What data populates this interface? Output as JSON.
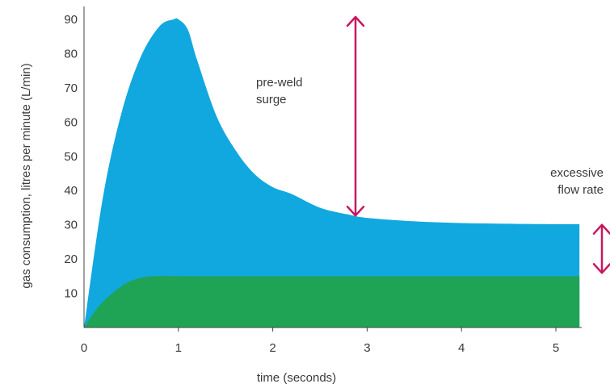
{
  "chart_data": {
    "type": "area",
    "xlabel": "time (seconds)",
    "ylabel": "gas consumption, litres per minute (L/min)",
    "xlim": [
      0,
      5.25
    ],
    "ylim": [
      0,
      92
    ],
    "x_ticks": [
      "0",
      "1",
      "2",
      "3",
      "4",
      "5"
    ],
    "y_ticks": [
      "10",
      "20",
      "30",
      "40",
      "50",
      "60",
      "70",
      "80",
      "90"
    ],
    "grid": false,
    "series": [
      {
        "color": "#11a8df",
        "x": [
          0,
          0.2,
          0.4,
          0.6,
          0.8,
          0.95,
          1.0,
          1.1,
          1.2,
          1.4,
          1.6,
          1.8,
          2.0,
          2.2,
          2.5,
          2.8,
          3.0,
          3.5,
          4.0,
          4.5,
          5.0,
          5.25
        ],
        "y": [
          0,
          38,
          63,
          79,
          88,
          90,
          90,
          87,
          78,
          62,
          52,
          45,
          41,
          39,
          35,
          33,
          32,
          31,
          30.5,
          30.3,
          30.2,
          30.2
        ]
      },
      {
        "color": "#1fa455",
        "x": [
          0,
          0.15,
          0.3,
          0.45,
          0.6,
          0.75,
          1.0,
          2.0,
          3.0,
          4.0,
          5.0,
          5.25
        ],
        "y": [
          0,
          6,
          10,
          13,
          14.5,
          15,
          15,
          15,
          15,
          15,
          15,
          15
        ]
      }
    ],
    "annotations": [
      {
        "lines": [
          "pre-weld",
          "surge"
        ],
        "range": [
          32,
          90
        ]
      },
      {
        "lines": [
          "excessive",
          "flow rate"
        ],
        "range": [
          15,
          30
        ]
      }
    ],
    "arrow_color": "#c8175d",
    "axis_color": "#444444"
  }
}
